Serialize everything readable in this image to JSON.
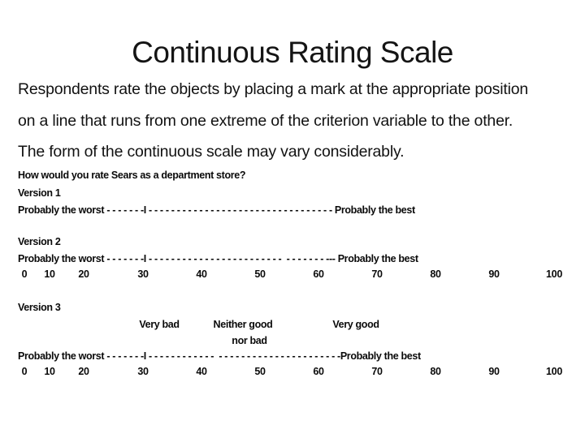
{
  "colors": {
    "background": "#ffffff",
    "text": "#000000"
  },
  "slide": {
    "title": "Continuous Rating Scale",
    "body_lines": [
      "Respondents rate the objects by placing a mark at the appropriate position",
      "on a line that runs from one extreme of the criterion variable to the other.",
      "The form of the continuous scale may vary considerably."
    ],
    "question": "How would you rate Sears as a department store?",
    "versions": [
      {
        "label": "Version 1",
        "left_anchor": "Probably the worst",
        "right_anchor": "Probably the best",
        "scale_line": "Probably the worst - - - - - - -I - - - - - - - - - - - - - - - - - - - - - - - - - - - - - - - - - Probably the best"
      },
      {
        "label": "Version 2",
        "left_anchor": "Probably the worst",
        "right_anchor": "Probably the best",
        "scale_line": "Probably the worst - - - - - - -I - - - - - - - - - - - - - - - - - - - - - - - -  - - - - - - - --- Probably the best",
        "ticks": [
          "0",
          "10",
          "20",
          "30",
          "40",
          "50",
          "60",
          "70",
          "80",
          "90",
          "100"
        ]
      },
      {
        "label": "Version 3",
        "left_anchor": "Probably the worst",
        "right_anchor": "Probably the best",
        "anchors": [
          "Very bad",
          "Neither good",
          "nor bad",
          "Very good"
        ],
        "scale_line": "Probably the worst - - - - - - -I - - - - - - - - - - - -  - - - - - - - - - - - - - - - - - - - - - -Probably the best",
        "ticks": [
          "0",
          "10",
          "20",
          "30",
          "40",
          "50",
          "60",
          "70",
          "80",
          "90",
          "100"
        ]
      }
    ]
  }
}
